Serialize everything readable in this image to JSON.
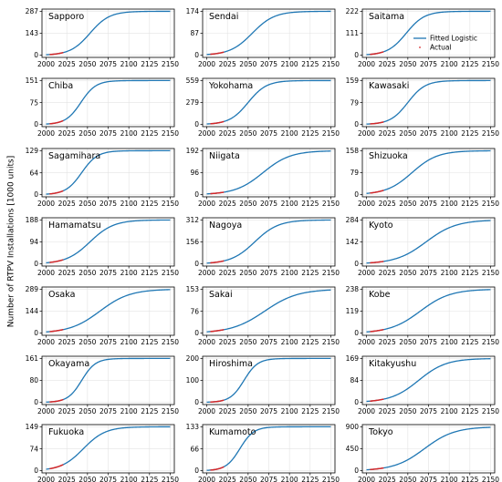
{
  "chart_data": {
    "type": "line",
    "ylabel": "Number of RTPV Installations [1000 units]",
    "xlim": [
      1995,
      2155
    ],
    "xticks": [
      2000,
      2025,
      2050,
      2075,
      2100,
      2125,
      2150
    ],
    "grid": true,
    "legend": {
      "placement": "right, Saitama panel",
      "entries": [
        {
          "name": "Fitted Logistic",
          "color": "#1f77b4",
          "marker": "line"
        },
        {
          "name": "Actual",
          "color": "#d62728",
          "marker": "point"
        }
      ]
    },
    "actual_years": [
      2005,
      2006,
      2007,
      2008,
      2009,
      2010,
      2011,
      2012,
      2013,
      2014,
      2015,
      2016,
      2017,
      2018,
      2019,
      2020
    ],
    "panels": [
      {
        "name": "Sapporo",
        "ymax": 287,
        "yticks": [
          0,
          143,
          287
        ],
        "midpoint": 2053,
        "rate": 0.085
      },
      {
        "name": "Sendai",
        "ymax": 174,
        "yticks": [
          0,
          87,
          174
        ],
        "midpoint": 2055,
        "rate": 0.075
      },
      {
        "name": "Saitama",
        "ymax": 222,
        "yticks": [
          0,
          111,
          222
        ],
        "midpoint": 2048,
        "rate": 0.09
      },
      {
        "name": "Chiba",
        "ymax": 151,
        "yticks": [
          0,
          75,
          151
        ],
        "midpoint": 2042,
        "rate": 0.11
      },
      {
        "name": "Yokohama",
        "ymax": 559,
        "yticks": [
          0,
          279,
          559
        ],
        "midpoint": 2050,
        "rate": 0.09
      },
      {
        "name": "Kawasaki",
        "ymax": 159,
        "yticks": [
          0,
          79,
          159
        ],
        "midpoint": 2050,
        "rate": 0.095
      },
      {
        "name": "Sagamihara",
        "ymax": 129,
        "yticks": [
          0,
          64,
          129
        ],
        "midpoint": 2043,
        "rate": 0.105
      },
      {
        "name": "Niigata",
        "ymax": 192,
        "yticks": [
          0,
          96,
          192
        ],
        "midpoint": 2068,
        "rate": 0.06
      },
      {
        "name": "Shizuoka",
        "ymax": 158,
        "yticks": [
          0,
          79,
          158
        ],
        "midpoint": 2055,
        "rate": 0.065
      },
      {
        "name": "Hamamatsu",
        "ymax": 188,
        "yticks": [
          0,
          94,
          188
        ],
        "midpoint": 2053,
        "rate": 0.07
      },
      {
        "name": "Nagoya",
        "ymax": 312,
        "yticks": [
          0,
          156,
          312
        ],
        "midpoint": 2058,
        "rate": 0.07
      },
      {
        "name": "Kyoto",
        "ymax": 284,
        "yticks": [
          0,
          142,
          284
        ],
        "midpoint": 2072,
        "rate": 0.055
      },
      {
        "name": "Osaka",
        "ymax": 289,
        "yticks": [
          0,
          144,
          289
        ],
        "midpoint": 2065,
        "rate": 0.055
      },
      {
        "name": "Sakai",
        "ymax": 153,
        "yticks": [
          0,
          76,
          153
        ],
        "midpoint": 2070,
        "rate": 0.05
      },
      {
        "name": "Kobe",
        "ymax": 238,
        "yticks": [
          0,
          119,
          238
        ],
        "midpoint": 2065,
        "rate": 0.055
      },
      {
        "name": "Okayama",
        "ymax": 161,
        "yticks": [
          0,
          80,
          161
        ],
        "midpoint": 2043,
        "rate": 0.12
      },
      {
        "name": "Hiroshima",
        "ymax": 200,
        "yticks": [
          0,
          100,
          200
        ],
        "midpoint": 2045,
        "rate": 0.12
      },
      {
        "name": "Kitakyushu",
        "ymax": 169,
        "yticks": [
          0,
          84,
          169
        ],
        "midpoint": 2063,
        "rate": 0.06
      },
      {
        "name": "Fukuoka",
        "ymax": 149,
        "yticks": [
          0,
          74,
          149
        ],
        "midpoint": 2045,
        "rate": 0.075
      },
      {
        "name": "Kumamoto",
        "ymax": 133,
        "yticks": [
          0,
          66,
          133
        ],
        "midpoint": 2040,
        "rate": 0.12
      },
      {
        "name": "Tokyo",
        "ymax": 900,
        "yticks": [
          0,
          450,
          900
        ],
        "midpoint": 2070,
        "rate": 0.055
      }
    ]
  }
}
